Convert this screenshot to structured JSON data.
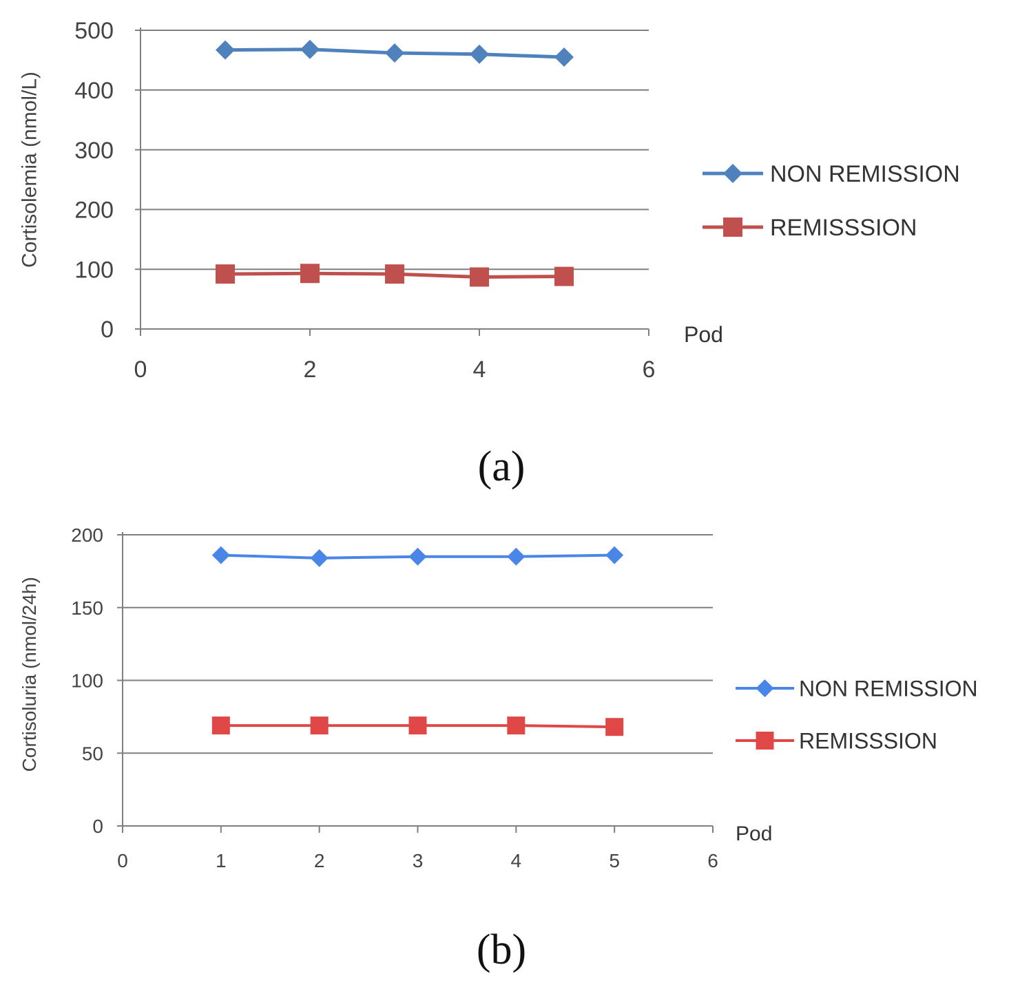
{
  "chart_data": [
    {
      "type": "line",
      "ylabel": "Cortisolemia (nmol/L)",
      "xlabel": "Pod",
      "panel_label": "(a)",
      "xlim": [
        0,
        6
      ],
      "ylim": [
        0,
        500
      ],
      "xticks": [
        0,
        2,
        4,
        6
      ],
      "yticks": [
        0,
        100,
        200,
        300,
        400,
        500
      ],
      "grid": true,
      "legend_position": "right",
      "series": [
        {
          "name": "NON REMISSION",
          "color": "#4f81bd",
          "marker": "diamond",
          "x": [
            1,
            2,
            3,
            4,
            5
          ],
          "y": [
            467,
            468,
            462,
            460,
            455
          ]
        },
        {
          "name": "REMISSSION",
          "color": "#c0504d",
          "marker": "square",
          "x": [
            1,
            2,
            3,
            4,
            5
          ],
          "y": [
            92,
            93,
            92,
            87,
            88
          ]
        }
      ]
    },
    {
      "type": "line",
      "ylabel": "Cortisoluria (nmol/24h)",
      "xlabel": "Pod",
      "panel_label": "(b)",
      "xlim": [
        0,
        6
      ],
      "ylim": [
        0,
        200
      ],
      "xticks": [
        0,
        1,
        2,
        3,
        4,
        5,
        6
      ],
      "yticks": [
        0,
        50,
        100,
        150,
        200
      ],
      "grid": true,
      "legend_position": "right",
      "series": [
        {
          "name": "NON REMISSION",
          "color": "#4a86e8",
          "marker": "diamond",
          "x": [
            1,
            2,
            3,
            4,
            5
          ],
          "y": [
            186,
            184,
            185,
            185,
            186
          ]
        },
        {
          "name": "REMISSSION",
          "color": "#e04848",
          "marker": "square",
          "x": [
            1,
            2,
            3,
            4,
            5
          ],
          "y": [
            69,
            69,
            69,
            69,
            68
          ]
        }
      ]
    }
  ]
}
